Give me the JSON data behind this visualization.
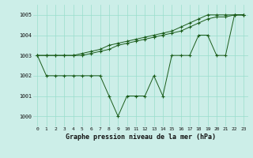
{
  "xlabel": "Graphe pression niveau de la mer (hPa)",
  "background_color": "#cceee8",
  "grid_color": "#99ddcc",
  "line_color": "#1a5c1a",
  "x_ticks": [
    0,
    1,
    2,
    3,
    4,
    5,
    6,
    7,
    8,
    9,
    10,
    11,
    12,
    13,
    14,
    15,
    16,
    17,
    18,
    19,
    20,
    21,
    22,
    23
  ],
  "ylim": [
    999.5,
    1005.5
  ],
  "yticks": [
    1000,
    1001,
    1002,
    1003,
    1004,
    1005
  ],
  "line1": [
    1003,
    1003,
    1003,
    1003,
    1003,
    1003.1,
    1003.2,
    1003.3,
    1003.5,
    1003.6,
    1003.7,
    1003.8,
    1003.9,
    1004.0,
    1004.1,
    1004.2,
    1004.4,
    1004.6,
    1004.8,
    1005.0,
    1005.0,
    1005.0,
    1005.0,
    1005.0
  ],
  "line2": [
    1003,
    1003,
    1003,
    1003,
    1003,
    1003.0,
    1003.1,
    1003.2,
    1003.3,
    1003.5,
    1003.6,
    1003.7,
    1003.8,
    1003.9,
    1004.0,
    1004.1,
    1004.2,
    1004.4,
    1004.6,
    1004.8,
    1004.9,
    1004.9,
    1005.0,
    1005.0
  ],
  "line3": [
    1003,
    1002,
    1002,
    1002,
    1002,
    1002,
    1002,
    1002,
    1001,
    1000,
    1001,
    1001,
    1001,
    1002,
    1001,
    1003,
    1003,
    1003,
    1004,
    1004,
    1003,
    1003,
    1005,
    1005
  ]
}
